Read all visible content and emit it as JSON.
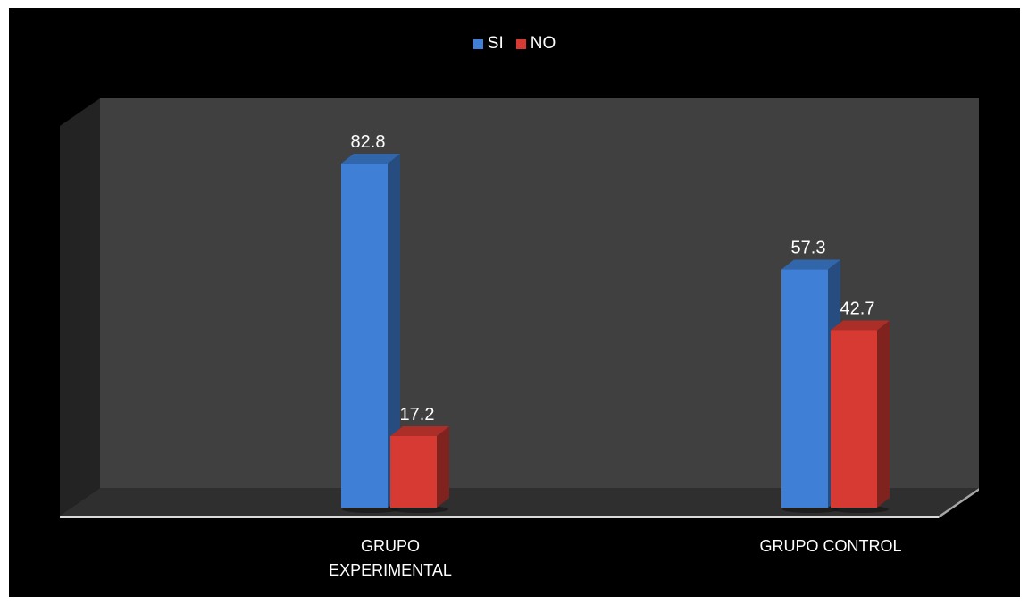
{
  "chart_data": {
    "type": "bar",
    "style": "3d-clustered-column",
    "categories": [
      "GRUPO EXPERIMENTAL",
      "GRUPO CONTROL"
    ],
    "category_lines": [
      [
        "GRUPO",
        "EXPERIMENTAL"
      ],
      [
        "GRUPO CONTROL"
      ]
    ],
    "series": [
      {
        "name": "SI",
        "values": [
          82.8,
          57.3
        ],
        "labels": [
          "82.8",
          "57.3"
        ],
        "color": "#3F7FD6"
      },
      {
        "name": "NO",
        "values": [
          17.2,
          42.7
        ],
        "labels": [
          "17.2",
          "42.7"
        ],
        "color": "#D63A33"
      }
    ],
    "ylim": [
      0,
      100
    ],
    "grid": false,
    "legend_position": "top",
    "title": "",
    "xlabel": "",
    "ylabel": "",
    "background": "#000000",
    "wall_color": "#404040",
    "floor_color": "#2F2F2F"
  }
}
